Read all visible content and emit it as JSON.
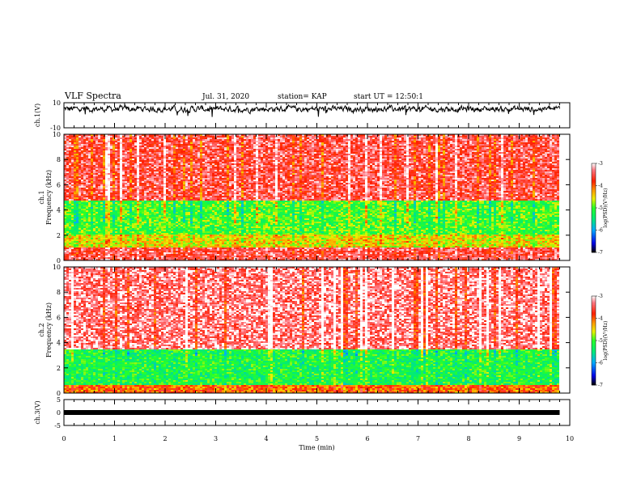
{
  "header": {
    "title": "VLF Spectra",
    "date": "Jul. 31, 2020",
    "station": "station= KAP",
    "start": "start UT = 12:50:1"
  },
  "chart_data": [
    {
      "type": "line",
      "name": "ch1-waveform",
      "ylabel": "ch.1(V)",
      "ylim": [
        -10,
        10
      ],
      "y_ticks": [
        "10",
        "-10"
      ],
      "xlim": [
        0,
        10
      ],
      "trace_mean": 5,
      "trace_amplitude": 3
    },
    {
      "type": "heatmap",
      "name": "ch1-spectrogram",
      "ylabel_1": "ch.1",
      "ylabel_2": "Frequency (kHz)",
      "ylim": [
        0,
        10
      ],
      "y_ticks": [
        "0",
        "2",
        "4",
        "6",
        "8",
        "10"
      ],
      "xlim": [
        0,
        9.8
      ],
      "colorbar": {
        "label": "log(PSD)(V²/Hz)",
        "range": [
          -7,
          -3
        ],
        "ticks": [
          "-3",
          "-4",
          "-5",
          "-6",
          "-7"
        ]
      },
      "bands": [
        {
          "from": 0,
          "to": 1,
          "level": -3.5
        },
        {
          "from": 1,
          "to": 2,
          "level": -4.5
        },
        {
          "from": 2,
          "to": 4.8,
          "level": -5.0
        },
        {
          "from": 4.8,
          "to": 10,
          "level": -3.5
        }
      ]
    },
    {
      "type": "heatmap",
      "name": "ch2-spectrogram",
      "ylabel_1": "ch.2",
      "ylabel_2": "Frequency (kHz)",
      "ylim": [
        0,
        10
      ],
      "y_ticks": [
        "0",
        "2",
        "4",
        "6",
        "8",
        "10"
      ],
      "xlim": [
        0,
        9.8
      ],
      "colorbar": {
        "label": "log(PSD)(V²/Hz)",
        "range": [
          -7,
          -3
        ],
        "ticks": [
          "-3",
          "-4",
          "-5",
          "-6",
          "-7"
        ]
      },
      "bands": [
        {
          "from": 0,
          "to": 0.6,
          "level": -4.0
        },
        {
          "from": 0.6,
          "to": 3.4,
          "level": -5.2
        },
        {
          "from": 3.4,
          "to": 10,
          "level": -3.3
        }
      ]
    },
    {
      "type": "line",
      "name": "ch3-waveform",
      "ylabel": "ch.3(V)",
      "ylim": [
        -5,
        5
      ],
      "y_ticks": [
        "5",
        "0",
        "-5"
      ],
      "xlim": [
        0,
        10
      ],
      "trace_mean": 0
    }
  ],
  "xaxis": {
    "label": "Time (min)",
    "range": [
      0,
      10
    ],
    "ticks": [
      "0",
      "1",
      "2",
      "3",
      "4",
      "5",
      "6",
      "7",
      "8",
      "9",
      "10"
    ]
  }
}
